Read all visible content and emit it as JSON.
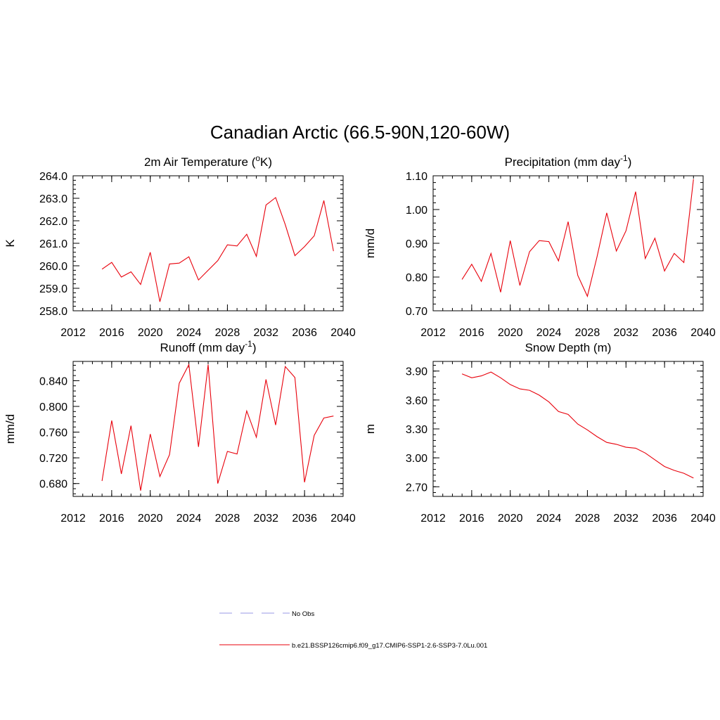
{
  "figure": {
    "title": "Canadian Arctic (66.5-90N,120-60W)"
  },
  "colors": {
    "model_line": "#e8000b",
    "obs_line": "#9a9ae6",
    "axis": "#000000"
  },
  "legend": {
    "placement": "bottom-center",
    "entries": [
      {
        "label": "No Obs",
        "style": "dashed",
        "color": "#9a9ae6"
      },
      {
        "label": "b.e21.BSSP126cmip6.f09_g17.CMIP6-SSP1-2.6-SSP3-7.0Lu.001",
        "style": "solid",
        "color": "#e8000b"
      }
    ]
  },
  "chart_data": [
    {
      "type": "line",
      "title_parts": {
        "main": "2m Air Temperature (",
        "sup": "o",
        "tail": "K)"
      },
      "xlabel": "",
      "ylabel": "K",
      "xlim": [
        2012,
        2040
      ],
      "ylim": [
        258.0,
        264.0
      ],
      "xticks": [
        2012,
        2016,
        2020,
        2024,
        2028,
        2032,
        2036,
        2040
      ],
      "xminor": 1,
      "yticks": [
        258.0,
        259.0,
        260.0,
        261.0,
        262.0,
        263.0,
        264.0
      ],
      "yminor": 0.2,
      "ydecimals": 1,
      "grid": false,
      "series": [
        {
          "name": "b.e21.BSSP126cmip6.f09_g17.CMIP6-SSP1-2.6-SSP3-7.0Lu.001",
          "x": [
            2015,
            2016,
            2017,
            2018,
            2019,
            2020,
            2021,
            2022,
            2023,
            2024,
            2025,
            2026,
            2027,
            2028,
            2029,
            2030,
            2031,
            2032,
            2033,
            2034,
            2035,
            2036,
            2037,
            2038,
            2039
          ],
          "y": [
            259.85,
            260.15,
            259.5,
            259.73,
            259.17,
            260.6,
            258.4,
            260.08,
            260.12,
            260.4,
            259.37,
            259.8,
            260.23,
            260.93,
            260.88,
            261.4,
            260.42,
            262.7,
            263.03,
            261.83,
            260.45,
            260.85,
            261.33,
            262.9,
            260.65
          ]
        }
      ]
    },
    {
      "type": "line",
      "title_parts": {
        "main": "Precipitation (mm day",
        "sup": "-1",
        "tail": ")"
      },
      "xlabel": "",
      "ylabel": "mm/d",
      "xlim": [
        2012,
        2040
      ],
      "ylim": [
        0.7,
        1.1
      ],
      "xticks": [
        2012,
        2016,
        2020,
        2024,
        2028,
        2032,
        2036,
        2040
      ],
      "xminor": 1,
      "yticks": [
        0.7,
        0.8,
        0.9,
        1.0,
        1.1
      ],
      "yminor": 0.02,
      "ydecimals": 2,
      "grid": false,
      "series": [
        {
          "name": "b.e21.BSSP126cmip6.f09_g17.CMIP6-SSP1-2.6-SSP3-7.0Lu.001",
          "x": [
            2015,
            2016,
            2017,
            2018,
            2019,
            2020,
            2021,
            2022,
            2023,
            2024,
            2025,
            2026,
            2027,
            2028,
            2029,
            2030,
            2031,
            2032,
            2033,
            2034,
            2035,
            2036,
            2037,
            2038,
            2039
          ],
          "y": [
            0.793,
            0.838,
            0.787,
            0.87,
            0.755,
            0.908,
            0.775,
            0.875,
            0.908,
            0.905,
            0.848,
            0.964,
            0.805,
            0.743,
            0.86,
            0.99,
            0.877,
            0.937,
            1.053,
            0.855,
            0.915,
            0.818,
            0.87,
            0.843,
            1.09
          ]
        }
      ]
    },
    {
      "type": "line",
      "title_parts": {
        "main": "Runoff (mm day",
        "sup": "-1",
        "tail": ")"
      },
      "xlabel": "",
      "ylabel": "mm/d",
      "xlim": [
        2012,
        2040
      ],
      "ylim": [
        0.66,
        0.87
      ],
      "xticks": [
        2012,
        2016,
        2020,
        2024,
        2028,
        2032,
        2036,
        2040
      ],
      "xminor": 1,
      "yticks": [
        0.68,
        0.72,
        0.76,
        0.8,
        0.84
      ],
      "yminor": 0.008,
      "ydecimals": 3,
      "grid": false,
      "series": [
        {
          "name": "b.e21.BSSP126cmip6.f09_g17.CMIP6-SSP1-2.6-SSP3-7.0Lu.001",
          "x": [
            2015,
            2016,
            2017,
            2018,
            2019,
            2020,
            2021,
            2022,
            2023,
            2024,
            2025,
            2026,
            2027,
            2028,
            2029,
            2030,
            2031,
            2032,
            2033,
            2034,
            2035,
            2036,
            2037,
            2038,
            2039
          ],
          "y": [
            0.684,
            0.778,
            0.695,
            0.77,
            0.669,
            0.757,
            0.691,
            0.725,
            0.836,
            0.865,
            0.737,
            0.865,
            0.68,
            0.73,
            0.726,
            0.793,
            0.752,
            0.842,
            0.771,
            0.862,
            0.845,
            0.682,
            0.755,
            0.782,
            0.785
          ]
        }
      ]
    },
    {
      "type": "line",
      "title_parts": {
        "main": "Snow Depth (m)",
        "sup": "",
        "tail": ""
      },
      "xlabel": "",
      "ylabel": "m",
      "xlim": [
        2012,
        2040
      ],
      "ylim": [
        2.6,
        4.0
      ],
      "xticks": [
        2012,
        2016,
        2020,
        2024,
        2028,
        2032,
        2036,
        2040
      ],
      "xminor": 1,
      "yticks": [
        2.7,
        3.0,
        3.3,
        3.6,
        3.9
      ],
      "yminor": 0.06,
      "ydecimals": 2,
      "grid": false,
      "series": [
        {
          "name": "b.e21.BSSP126cmip6.f09_g17.CMIP6-SSP1-2.6-SSP3-7.0Lu.001",
          "x": [
            2015,
            2016,
            2017,
            2018,
            2019,
            2020,
            2021,
            2022,
            2023,
            2024,
            2025,
            2026,
            2027,
            2028,
            2029,
            2030,
            2031,
            2032,
            2033,
            2034,
            2035,
            2036,
            2037,
            2038,
            2039
          ],
          "y": [
            3.87,
            3.83,
            3.85,
            3.89,
            3.83,
            3.76,
            3.715,
            3.7,
            3.65,
            3.58,
            3.48,
            3.45,
            3.35,
            3.29,
            3.22,
            3.16,
            3.14,
            3.11,
            3.1,
            3.05,
            2.98,
            2.91,
            2.87,
            2.84,
            2.79
          ]
        }
      ]
    }
  ]
}
